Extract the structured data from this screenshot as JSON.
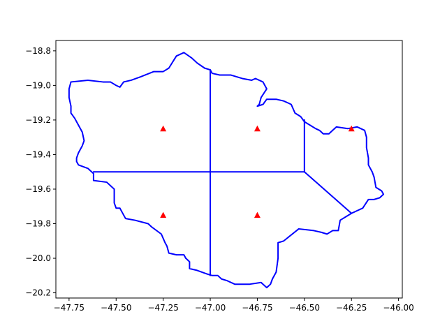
{
  "chart_data": {
    "type": "line",
    "title": "",
    "xlabel": "",
    "ylabel": "",
    "xlim": [
      -47.82,
      -45.98
    ],
    "ylim": [
      -20.23,
      -18.74
    ],
    "xticks": [
      -47.75,
      -47.5,
      -47.25,
      -47.0,
      -46.75,
      -46.5,
      -46.25,
      -46.0
    ],
    "xtick_labels": [
      "−47.75",
      "−47.50",
      "−47.25",
      "−47.00",
      "−46.75",
      "−46.50",
      "−46.25",
      "−46.00"
    ],
    "yticks": [
      -18.8,
      -19.0,
      -19.2,
      -19.4,
      -19.6,
      -19.8,
      -20.0,
      -20.2
    ],
    "ytick_labels": [
      "−18.8",
      "−19.0",
      "−19.2",
      "−19.4",
      "−19.6",
      "−19.8",
      "−20.0",
      "−20.2"
    ],
    "grid": false,
    "colors": {
      "boundary": "#0000ff",
      "points": "#ff0000"
    },
    "series": [
      {
        "kind": "line",
        "values": [
          [
            -47.74,
            -18.98
          ],
          [
            -47.65,
            -18.97
          ],
          [
            -47.57,
            -18.98
          ],
          [
            -47.53,
            -18.98
          ],
          [
            -47.5,
            -19.0
          ],
          [
            -47.48,
            -19.01
          ],
          [
            -47.46,
            -18.98
          ],
          [
            -47.42,
            -18.97
          ],
          [
            -47.37,
            -18.95
          ],
          [
            -47.3,
            -18.92
          ],
          [
            -47.25,
            -18.92
          ],
          [
            -47.22,
            -18.9
          ],
          [
            -47.18,
            -18.83
          ],
          [
            -47.14,
            -18.81
          ],
          [
            -47.1,
            -18.84
          ],
          [
            -47.07,
            -18.87
          ],
          [
            -47.03,
            -18.9
          ],
          [
            -47.0,
            -18.91
          ],
          [
            -46.99,
            -18.93
          ],
          [
            -46.95,
            -18.94
          ],
          [
            -46.89,
            -18.94
          ],
          [
            -46.83,
            -18.96
          ],
          [
            -46.78,
            -18.97
          ],
          [
            -46.76,
            -18.96
          ],
          [
            -46.72,
            -18.98
          ],
          [
            -46.7,
            -19.02
          ],
          [
            -46.73,
            -19.07
          ],
          [
            -46.74,
            -19.11
          ],
          [
            -46.75,
            -19.12
          ],
          [
            -46.72,
            -19.11
          ],
          [
            -46.7,
            -19.08
          ],
          [
            -46.65,
            -19.08
          ],
          [
            -46.61,
            -19.09
          ],
          [
            -46.59,
            -19.1
          ],
          [
            -46.57,
            -19.11
          ],
          [
            -46.55,
            -19.16
          ],
          [
            -46.52,
            -19.18
          ],
          [
            -46.5,
            -19.21
          ],
          [
            -46.47,
            -19.23
          ],
          [
            -46.44,
            -19.25
          ],
          [
            -46.42,
            -19.26
          ],
          [
            -46.4,
            -19.28
          ],
          [
            -46.37,
            -19.28
          ],
          [
            -46.35,
            -19.26
          ],
          [
            -46.33,
            -19.24
          ],
          [
            -46.27,
            -19.25
          ],
          [
            -46.22,
            -19.24
          ],
          [
            -46.18,
            -19.26
          ],
          [
            -46.17,
            -19.3
          ],
          [
            -46.17,
            -19.36
          ],
          [
            -46.16,
            -19.42
          ],
          [
            -46.16,
            -19.46
          ],
          [
            -46.14,
            -19.5
          ],
          [
            -46.13,
            -19.53
          ],
          [
            -46.12,
            -19.59
          ],
          [
            -46.09,
            -19.61
          ],
          [
            -46.08,
            -19.63
          ],
          [
            -46.1,
            -19.65
          ],
          [
            -46.13,
            -19.66
          ],
          [
            -46.16,
            -19.66
          ],
          [
            -46.19,
            -19.71
          ],
          [
            -46.25,
            -19.74
          ],
          [
            -46.28,
            -19.76
          ],
          [
            -46.31,
            -19.78
          ],
          [
            -46.32,
            -19.84
          ],
          [
            -46.35,
            -19.84
          ],
          [
            -46.38,
            -19.86
          ],
          [
            -46.41,
            -19.85
          ],
          [
            -46.45,
            -19.84
          ],
          [
            -46.53,
            -19.83
          ],
          [
            -46.61,
            -19.9
          ],
          [
            -46.64,
            -19.91
          ],
          [
            -46.64,
            -20.0
          ],
          [
            -46.65,
            -20.08
          ],
          [
            -46.67,
            -20.12
          ],
          [
            -46.68,
            -20.15
          ],
          [
            -46.7,
            -20.17
          ],
          [
            -46.73,
            -20.14
          ],
          [
            -46.79,
            -20.15
          ],
          [
            -46.87,
            -20.15
          ],
          [
            -46.91,
            -20.13
          ],
          [
            -46.94,
            -20.12
          ],
          [
            -46.96,
            -20.1
          ],
          [
            -46.99,
            -20.1
          ],
          [
            -47.02,
            -20.09
          ],
          [
            -47.07,
            -20.07
          ],
          [
            -47.11,
            -20.06
          ],
          [
            -47.11,
            -20.04
          ],
          [
            -47.11,
            -20.02
          ],
          [
            -47.13,
            -20.0
          ],
          [
            -47.14,
            -19.98
          ],
          [
            -47.18,
            -19.98
          ],
          [
            -47.22,
            -19.97
          ],
          [
            -47.23,
            -19.93
          ],
          [
            -47.24,
            -19.91
          ],
          [
            -47.26,
            -19.86
          ],
          [
            -47.31,
            -19.82
          ],
          [
            -47.33,
            -19.8
          ],
          [
            -47.4,
            -19.78
          ],
          [
            -47.45,
            -19.77
          ],
          [
            -47.47,
            -19.73
          ],
          [
            -47.48,
            -19.71
          ],
          [
            -47.5,
            -19.71
          ],
          [
            -47.51,
            -19.68
          ],
          [
            -47.51,
            -19.6
          ],
          [
            -47.55,
            -19.56
          ],
          [
            -47.62,
            -19.55
          ],
          [
            -47.62,
            -19.51
          ],
          [
            -47.65,
            -19.48
          ],
          [
            -47.7,
            -19.46
          ],
          [
            -47.71,
            -19.44
          ],
          [
            -47.71,
            -19.42
          ],
          [
            -47.7,
            -19.39
          ],
          [
            -47.69,
            -19.37
          ],
          [
            -47.68,
            -19.35
          ],
          [
            -47.67,
            -19.32
          ],
          [
            -47.68,
            -19.27
          ],
          [
            -47.7,
            -19.23
          ],
          [
            -47.72,
            -19.19
          ],
          [
            -47.74,
            -19.16
          ],
          [
            -47.74,
            -19.12
          ],
          [
            -47.75,
            -19.07
          ],
          [
            -47.75,
            -19.02
          ],
          [
            -47.74,
            -18.98
          ]
        ]
      },
      {
        "kind": "line",
        "values": [
          [
            -47.0,
            -18.91
          ],
          [
            -47.0,
            -20.1
          ]
        ]
      },
      {
        "kind": "line",
        "values": [
          [
            -47.62,
            -19.5
          ],
          [
            -46.5,
            -19.5
          ]
        ]
      },
      {
        "kind": "line",
        "values": [
          [
            -46.5,
            -19.2
          ],
          [
            -46.5,
            -19.5
          ]
        ]
      },
      {
        "kind": "line",
        "values": [
          [
            -46.5,
            -19.5
          ],
          [
            -46.25,
            -19.74
          ]
        ]
      },
      {
        "kind": "scatter",
        "marker": "triangle",
        "values": [
          [
            -47.25,
            -19.25
          ],
          [
            -46.75,
            -19.25
          ],
          [
            -46.25,
            -19.25
          ],
          [
            -47.25,
            -19.75
          ],
          [
            -46.75,
            -19.75
          ]
        ]
      }
    ]
  }
}
